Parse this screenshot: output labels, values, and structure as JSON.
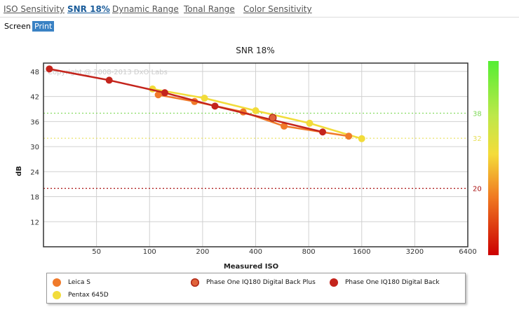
{
  "tabs": [
    {
      "label": "ISO Sensitivity",
      "active": false
    },
    {
      "label": "SNR 18%",
      "active": true
    },
    {
      "label": "Dynamic Range",
      "active": false
    },
    {
      "label": "Tonal Range",
      "active": false
    },
    {
      "label": "Color Sensitivity",
      "active": false
    }
  ],
  "modes": {
    "screen_label": "Screen",
    "print_label": "Print",
    "selected": "Print"
  },
  "chart_data": {
    "type": "line",
    "title": "SNR 18%",
    "xlabel": "Measured ISO",
    "ylabel": "dB",
    "xscale": "log2",
    "xlim": [
      25,
      6400
    ],
    "ylim": [
      6,
      50
    ],
    "xticks": [
      50,
      100,
      200,
      400,
      800,
      1600,
      3200,
      6400
    ],
    "yticks": [
      12,
      18,
      24,
      30,
      36,
      42,
      48
    ],
    "watermark": "Copyright @ 2008-2013 DxO Labs",
    "reference_lines": [
      {
        "value": 38,
        "label": "38",
        "color": "#7ed957"
      },
      {
        "value": 32,
        "label": "32",
        "color": "#e8e05a"
      },
      {
        "value": 20,
        "label": "20",
        "color": "#aa1111"
      }
    ],
    "series": [
      {
        "name": "Leica S",
        "color": "#f07a2a",
        "points": [
          [
            112,
            42.4
          ],
          [
            180,
            40.8
          ],
          [
            340,
            38.3
          ],
          [
            580,
            34.9
          ],
          [
            1350,
            32.5
          ]
        ]
      },
      {
        "name": "Phase One IQ180 Digital Back Plus",
        "color": "#e0623a",
        "points": [
          [
            500,
            36.9
          ]
        ]
      },
      {
        "name": "Phase One IQ180 Digital Back",
        "color": "#c4241c",
        "points": [
          [
            27,
            48.6
          ],
          [
            59,
            45.9
          ],
          [
            122,
            42.9
          ],
          [
            235,
            39.7
          ],
          [
            960,
            33.5
          ]
        ]
      },
      {
        "name": "Pentax 645D",
        "color": "#f2dc3a",
        "points": [
          [
            104,
            43.8
          ],
          [
            205,
            41.6
          ],
          [
            400,
            38.6
          ],
          [
            810,
            35.6
          ],
          [
            1600,
            31.9
          ]
        ]
      }
    ],
    "legend_position": "bottom"
  }
}
